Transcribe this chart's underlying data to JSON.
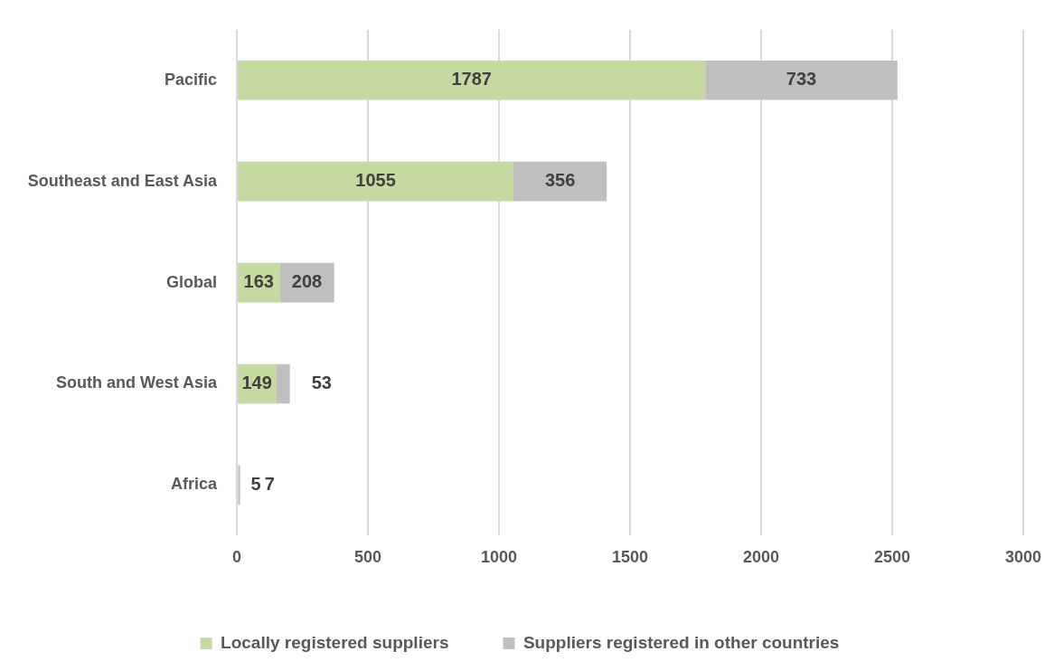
{
  "chart_data": {
    "type": "bar",
    "orientation": "horizontal",
    "stacked": true,
    "categories": [
      "Pacific",
      "Southeast and East Asia",
      "Global",
      "South and West Asia",
      "Africa"
    ],
    "series": [
      {
        "name": "Locally registered suppliers",
        "color": "#c5d9a0",
        "values": [
          1787,
          1055,
          163,
          149,
          5
        ]
      },
      {
        "name": "Suppliers registered in other countries",
        "color": "#bfbfbf",
        "values": [
          733,
          356,
          208,
          53,
          7
        ]
      }
    ],
    "xlim": [
      0,
      3000
    ],
    "xticks": [
      0,
      500,
      1000,
      1500,
      2000,
      2500,
      3000
    ],
    "grid": "x",
    "legend": "bottom",
    "data_labels": true
  }
}
